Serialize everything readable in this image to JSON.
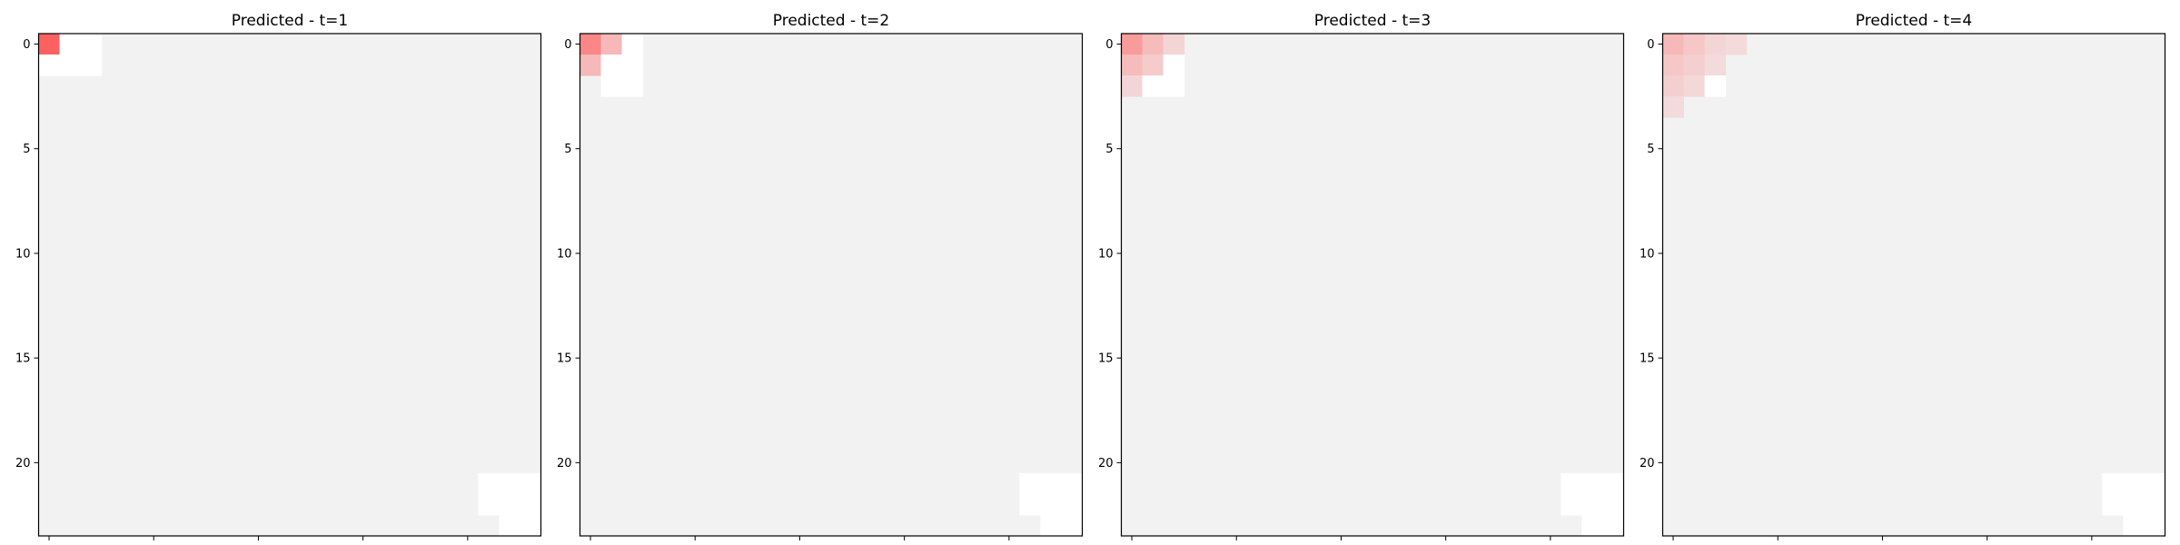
{
  "chart_data": [
    {
      "type": "heatmap",
      "title": "Predicted - t=1",
      "grid_size": [
        24,
        24
      ],
      "xticks": [
        0,
        5,
        10,
        15,
        20
      ],
      "yticks": [
        0,
        5,
        10,
        15,
        20
      ],
      "background_color": "#f2f2f2",
      "cells": [
        {
          "row": 0,
          "col": 0,
          "kind": "red",
          "intensity": 0.75
        },
        {
          "row": 0,
          "col": 1,
          "kind": "white"
        },
        {
          "row": 0,
          "col": 2,
          "kind": "white"
        },
        {
          "row": 1,
          "col": 0,
          "kind": "white"
        },
        {
          "row": 1,
          "col": 1,
          "kind": "white"
        },
        {
          "row": 1,
          "col": 2,
          "kind": "white"
        },
        {
          "row": 21,
          "col": 21,
          "kind": "white"
        },
        {
          "row": 21,
          "col": 22,
          "kind": "white"
        },
        {
          "row": 21,
          "col": 23,
          "kind": "white"
        },
        {
          "row": 22,
          "col": 21,
          "kind": "white"
        },
        {
          "row": 22,
          "col": 22,
          "kind": "white"
        },
        {
          "row": 22,
          "col": 23,
          "kind": "white"
        },
        {
          "row": 23,
          "col": 22,
          "kind": "white"
        },
        {
          "row": 23,
          "col": 23,
          "kind": "white"
        }
      ]
    },
    {
      "type": "heatmap",
      "title": "Predicted - t=2",
      "grid_size": [
        24,
        24
      ],
      "xticks": [
        0,
        5,
        10,
        15,
        20
      ],
      "yticks": [
        0,
        5,
        10,
        15,
        20
      ],
      "background_color": "#f2f2f2",
      "cells": [
        {
          "row": 0,
          "col": 0,
          "kind": "red",
          "intensity": 0.55
        },
        {
          "row": 0,
          "col": 1,
          "kind": "red",
          "intensity": 0.3
        },
        {
          "row": 0,
          "col": 2,
          "kind": "white"
        },
        {
          "row": 1,
          "col": 0,
          "kind": "red",
          "intensity": 0.3
        },
        {
          "row": 1,
          "col": 1,
          "kind": "white"
        },
        {
          "row": 1,
          "col": 2,
          "kind": "white"
        },
        {
          "row": 2,
          "col": 1,
          "kind": "white"
        },
        {
          "row": 2,
          "col": 2,
          "kind": "white"
        },
        {
          "row": 21,
          "col": 21,
          "kind": "white"
        },
        {
          "row": 21,
          "col": 22,
          "kind": "white"
        },
        {
          "row": 21,
          "col": 23,
          "kind": "white"
        },
        {
          "row": 22,
          "col": 21,
          "kind": "white"
        },
        {
          "row": 22,
          "col": 22,
          "kind": "white"
        },
        {
          "row": 22,
          "col": 23,
          "kind": "white"
        },
        {
          "row": 23,
          "col": 22,
          "kind": "white"
        },
        {
          "row": 23,
          "col": 23,
          "kind": "white"
        }
      ]
    },
    {
      "type": "heatmap",
      "title": "Predicted - t=3",
      "grid_size": [
        24,
        24
      ],
      "xticks": [
        0,
        5,
        10,
        15,
        20
      ],
      "yticks": [
        0,
        5,
        10,
        15,
        20
      ],
      "background_color": "#f2f2f2",
      "cells": [
        {
          "row": 0,
          "col": 0,
          "kind": "red",
          "intensity": 0.45
        },
        {
          "row": 0,
          "col": 1,
          "kind": "red",
          "intensity": 0.28
        },
        {
          "row": 0,
          "col": 2,
          "kind": "red",
          "intensity": 0.15
        },
        {
          "row": 1,
          "col": 0,
          "kind": "red",
          "intensity": 0.28
        },
        {
          "row": 1,
          "col": 1,
          "kind": "red",
          "intensity": 0.2
        },
        {
          "row": 1,
          "col": 2,
          "kind": "white"
        },
        {
          "row": 2,
          "col": 0,
          "kind": "red",
          "intensity": 0.15
        },
        {
          "row": 2,
          "col": 1,
          "kind": "white"
        },
        {
          "row": 2,
          "col": 2,
          "kind": "white"
        },
        {
          "row": 21,
          "col": 21,
          "kind": "white"
        },
        {
          "row": 21,
          "col": 22,
          "kind": "white"
        },
        {
          "row": 21,
          "col": 23,
          "kind": "white"
        },
        {
          "row": 22,
          "col": 21,
          "kind": "white"
        },
        {
          "row": 22,
          "col": 22,
          "kind": "white"
        },
        {
          "row": 22,
          "col": 23,
          "kind": "white"
        },
        {
          "row": 23,
          "col": 22,
          "kind": "white"
        },
        {
          "row": 23,
          "col": 23,
          "kind": "white"
        }
      ]
    },
    {
      "type": "heatmap",
      "title": "Predicted - t=4",
      "grid_size": [
        24,
        24
      ],
      "xticks": [
        0,
        5,
        10,
        15,
        20
      ],
      "yticks": [
        0,
        5,
        10,
        15,
        20
      ],
      "background_color": "#f2f2f2",
      "cells": [
        {
          "row": 0,
          "col": 0,
          "kind": "red",
          "intensity": 0.3
        },
        {
          "row": 0,
          "col": 1,
          "kind": "red",
          "intensity": 0.22
        },
        {
          "row": 0,
          "col": 2,
          "kind": "red",
          "intensity": 0.15
        },
        {
          "row": 0,
          "col": 3,
          "kind": "red",
          "intensity": 0.12
        },
        {
          "row": 1,
          "col": 0,
          "kind": "red",
          "intensity": 0.22
        },
        {
          "row": 1,
          "col": 1,
          "kind": "red",
          "intensity": 0.18
        },
        {
          "row": 1,
          "col": 2,
          "kind": "red",
          "intensity": 0.12
        },
        {
          "row": 2,
          "col": 0,
          "kind": "red",
          "intensity": 0.18
        },
        {
          "row": 2,
          "col": 1,
          "kind": "red",
          "intensity": 0.14
        },
        {
          "row": 2,
          "col": 2,
          "kind": "white"
        },
        {
          "row": 3,
          "col": 0,
          "kind": "red",
          "intensity": 0.12
        },
        {
          "row": 21,
          "col": 21,
          "kind": "white"
        },
        {
          "row": 21,
          "col": 22,
          "kind": "white"
        },
        {
          "row": 21,
          "col": 23,
          "kind": "white"
        },
        {
          "row": 22,
          "col": 21,
          "kind": "white"
        },
        {
          "row": 22,
          "col": 22,
          "kind": "white"
        },
        {
          "row": 22,
          "col": 23,
          "kind": "white"
        },
        {
          "row": 23,
          "col": 22,
          "kind": "white"
        },
        {
          "row": 23,
          "col": 23,
          "kind": "white"
        }
      ]
    }
  ]
}
